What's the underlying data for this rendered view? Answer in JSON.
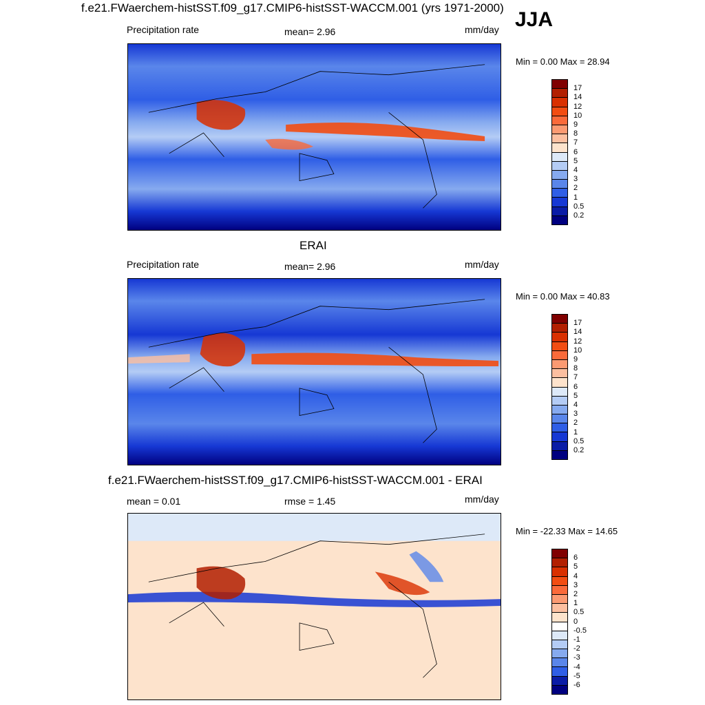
{
  "figure": {
    "main_title": "f.e21.FWaerchem-histSST.f09_g17.CMIP6-histSST-WACCM.001 (yrs 1971-2000)",
    "season": "JJA"
  },
  "panels": [
    {
      "title": "",
      "left_label": "Precipitation rate",
      "center_label": "mean=   2.96",
      "units": "mm/day",
      "minmax": "Min =   0.00 Max =  28.94",
      "levels": [
        "17",
        "14",
        "12",
        "10",
        "9",
        "8",
        "7",
        "6",
        "5",
        "4",
        "3",
        "2",
        "1",
        "0.5",
        "0.2"
      ],
      "colors": [
        "#800000",
        "#b21f00",
        "#d93000",
        "#f24d12",
        "#fa6a3a",
        "#fb9a72",
        "#fcbfa0",
        "#fde3cc",
        "#dde9f8",
        "#b4ccf5",
        "#86aaef",
        "#5a86ea",
        "#2f5ee6",
        "#1638d4",
        "#0a1ca6",
        "#000080"
      ]
    },
    {
      "title": "ERAI",
      "left_label": "Precipitation rate",
      "center_label": "mean=   2.96",
      "units": "mm/day",
      "minmax": "Min =   0.00 Max =  40.83",
      "levels": [
        "17",
        "14",
        "12",
        "10",
        "9",
        "8",
        "7",
        "6",
        "5",
        "4",
        "3",
        "2",
        "1",
        "0.5",
        "0.2"
      ],
      "colors": [
        "#800000",
        "#b21f00",
        "#d93000",
        "#f24d12",
        "#fa6a3a",
        "#fb9a72",
        "#fcbfa0",
        "#fde3cc",
        "#dde9f8",
        "#b4ccf5",
        "#86aaef",
        "#5a86ea",
        "#2f5ee6",
        "#1638d4",
        "#0a1ca6",
        "#000080"
      ]
    },
    {
      "title": "f.e21.FWaerchem-histSST.f09_g17.CMIP6-histSST-WACCM.001 - ERAI",
      "left_label": "mean =   0.01",
      "center_label": "rmse =   1.45",
      "units": "mm/day",
      "minmax": "Min = -22.33 Max =  14.65",
      "levels": [
        "6",
        "5",
        "4",
        "3",
        "2",
        "1",
        "0.5",
        "0",
        "-0.5",
        "-1",
        "-2",
        "-3",
        "-4",
        "-5",
        "-6"
      ],
      "colors": [
        "#800000",
        "#b21f00",
        "#d93000",
        "#f24d12",
        "#fa6a3a",
        "#fb9a72",
        "#fcbfa0",
        "#fde3cc",
        "#ffffff",
        "#dde9f8",
        "#b4ccf5",
        "#86aaef",
        "#5a86ea",
        "#2f5ee6",
        "#0a1ca6",
        "#000080"
      ]
    }
  ],
  "chart_data": [
    {
      "type": "heatmap",
      "title": "",
      "variable": "Precipitation rate",
      "units": "mm/day",
      "mean": 2.96,
      "min": 0.0,
      "max": 28.94,
      "contour_levels": [
        0.2,
        0.5,
        1,
        2,
        3,
        4,
        5,
        6,
        7,
        8,
        9,
        10,
        12,
        14,
        17
      ]
    },
    {
      "type": "heatmap",
      "title": "ERAI",
      "variable": "Precipitation rate",
      "units": "mm/day",
      "mean": 2.96,
      "min": 0.0,
      "max": 40.83,
      "contour_levels": [
        0.2,
        0.5,
        1,
        2,
        3,
        4,
        5,
        6,
        7,
        8,
        9,
        10,
        12,
        14,
        17
      ]
    },
    {
      "type": "heatmap",
      "title": "f.e21.FWaerchem-histSST.f09_g17.CMIP6-histSST-WACCM.001 - ERAI",
      "units": "mm/day",
      "mean": 0.01,
      "rmse": 1.45,
      "min": -22.33,
      "max": 14.65,
      "contour_levels": [
        -6,
        -5,
        -4,
        -3,
        -2,
        -1,
        -0.5,
        0,
        0.5,
        1,
        2,
        3,
        4,
        5,
        6
      ]
    }
  ]
}
